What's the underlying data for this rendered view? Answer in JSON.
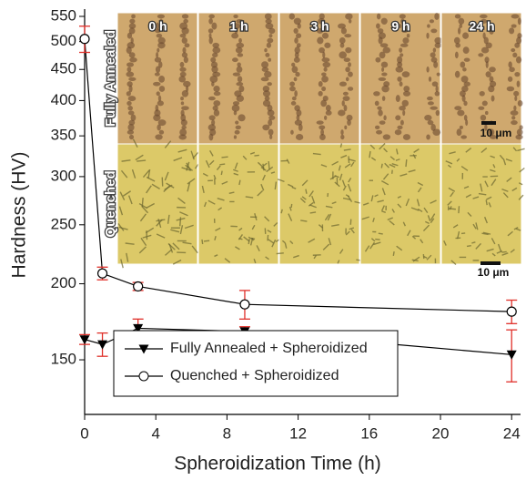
{
  "chart_data": {
    "type": "line",
    "x_label": "Spheroidization Time (h)",
    "y_label": "Hardness (HV)",
    "x": [
      0,
      1,
      3,
      9,
      24
    ],
    "series": [
      {
        "name": "Fully Annealed + Spheroidized",
        "color": "#000000",
        "marker": "triangle-down",
        "values": [
          162,
          159,
          169,
          167,
          153
        ],
        "errors": [
          3,
          7,
          6,
          3,
          15
        ]
      },
      {
        "name": "Quenched + Spheroidized",
        "color": "#000000",
        "marker": "circle-open",
        "values": [
          505,
          208,
          198,
          185,
          180
        ],
        "errors": [
          25,
          5,
          3,
          10,
          8
        ]
      }
    ],
    "error_color": "#e0302a",
    "xlim": [
      0,
      24.5
    ],
    "ylim": [
      122,
      550
    ],
    "log_y": true,
    "xticks": [
      0,
      4,
      8,
      12,
      16,
      20,
      24
    ],
    "yticks": [
      150,
      200,
      250,
      300,
      350,
      400,
      450,
      500,
      550
    ],
    "legend": "lower left",
    "inset": {
      "columns": [
        "0 h",
        "1 h",
        "3 h",
        "9 h",
        "24 h"
      ],
      "rows": [
        "Fully Annealed",
        "Quenched"
      ],
      "scale_bars": [
        "10 μm",
        "10 μm"
      ]
    }
  }
}
